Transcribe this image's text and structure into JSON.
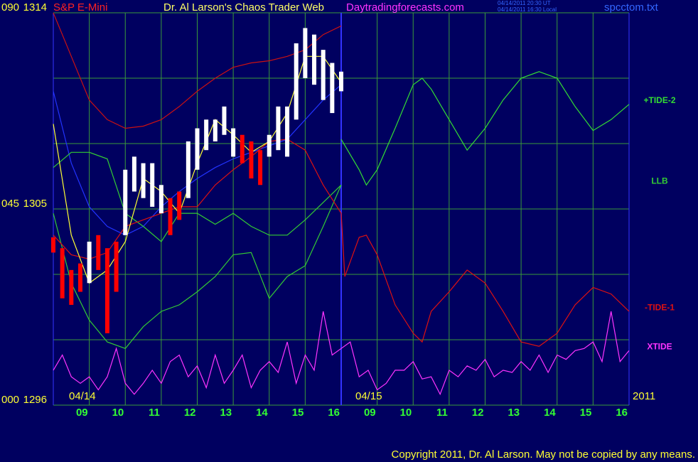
{
  "chart_data": {
    "type": "line",
    "title": "Dr. Al Larson's Chaos Trader Web",
    "symbol": "S&P E-Mini",
    "website": "Daytradingforecasts.com",
    "timestamp_ut": "04/14/2011 20:30 UT",
    "timestamp_local": "04/14/2011 16:30 Local",
    "filename": "spcctom.txt",
    "date_labels": [
      "04/14",
      "04/15",
      "2011"
    ],
    "copyright": "Copyright 2011, Dr. Al Larson. May not be copied by any means.",
    "xlim": [
      0,
      16
    ],
    "xticks": [
      {
        "value": 1,
        "label": "09"
      },
      {
        "value": 2,
        "label": "10"
      },
      {
        "value": 3,
        "label": "11"
      },
      {
        "value": 4,
        "label": "12"
      },
      {
        "value": 5,
        "label": "13"
      },
      {
        "value": 6,
        "label": "14"
      },
      {
        "value": 7,
        "label": "15"
      },
      {
        "value": 8,
        "label": "16"
      },
      {
        "value": 9,
        "label": "09"
      },
      {
        "value": 10,
        "label": "10"
      },
      {
        "value": 11,
        "label": "11"
      },
      {
        "value": 12,
        "label": "12"
      },
      {
        "value": 13,
        "label": "13"
      },
      {
        "value": 14,
        "label": "14"
      },
      {
        "value": 15,
        "label": "15"
      },
      {
        "value": 16,
        "label": "16"
      }
    ],
    "session_break": 8,
    "ylim": [
      1296,
      1314
    ],
    "yticks": [
      1296,
      1305,
      1314
    ],
    "y2lim": [
      0,
      90
    ],
    "y2ticks": [
      {
        "value": 0,
        "label": "000"
      },
      {
        "value": 45,
        "label": "045"
      },
      {
        "value": 90,
        "label": "090"
      }
    ],
    "grid_y": [
      1299,
      1302,
      1308,
      1311
    ],
    "grid": true,
    "grid_color": "#3a9a3a",
    "axis_color": "#3333ff",
    "background": "#000060",
    "series": [
      {
        "color": "#cc1111",
        "x": [
          0,
          0.5,
          1,
          1.5,
          2,
          2.5,
          3,
          3.5,
          4,
          4.5,
          5,
          5.5,
          6,
          6.5,
          7,
          7.5,
          8
        ],
        "values": [
          1314.0,
          1312.0,
          1310.0,
          1309.1,
          1308.7,
          1308.8,
          1309.1,
          1309.7,
          1310.4,
          1311.0,
          1311.5,
          1311.7,
          1311.8,
          1312.0,
          1312.3,
          1313.0,
          1313.4
        ]
      },
      {
        "color": "#2233ff",
        "x": [
          0,
          0.5,
          1,
          1.5,
          2,
          2.5,
          3,
          3.5,
          4,
          4.5,
          5,
          5.5,
          6,
          6.5,
          7,
          7.5,
          8
        ],
        "values": [
          1310.4,
          1307.1,
          1305.1,
          1304.2,
          1303.8,
          1304.2,
          1305.1,
          1305.8,
          1306.4,
          1306.9,
          1307.3,
          1307.6,
          1307.9,
          1308.2,
          1309.1,
          1310.0,
          1310.7
        ]
      },
      {
        "color": "#33cc33",
        "x": [
          0,
          0.5,
          1,
          1.5,
          2,
          2.5,
          3,
          3.5,
          4,
          4.5,
          5,
          5.5,
          6,
          6.5,
          7,
          7.5,
          8
        ],
        "values": [
          1304.8,
          1301.6,
          1299.9,
          1298.9,
          1298.6,
          1299.6,
          1300.3,
          1300.6,
          1301.2,
          1301.9,
          1302.9,
          1303.0,
          1300.9,
          1301.9,
          1302.4,
          1304.2,
          1306.1
        ]
      },
      {
        "name": "LLB",
        "color": "#33cc33",
        "x": [
          0,
          0.5,
          1,
          1.5,
          2,
          2.5,
          3,
          3.5,
          4,
          4.5,
          5,
          5.5,
          6,
          6.5,
          7,
          7.5,
          8
        ],
        "values": [
          1306.9,
          1307.6,
          1307.6,
          1307.3,
          1304.8,
          1304.2,
          1303.5,
          1304.8,
          1304.8,
          1304.3,
          1304.8,
          1304.2,
          1303.8,
          1303.8,
          1304.5,
          1305.3,
          1306.1
        ]
      },
      {
        "name": "+TIDE-2",
        "color": "#33dd33",
        "x": [
          8,
          8.5,
          8.7,
          9,
          9.5,
          10,
          10.25,
          10.5,
          11,
          11.5,
          12,
          12.5,
          13,
          13.5,
          14,
          14.5,
          15,
          15.5,
          16
        ],
        "values": [
          1308.2,
          1306.8,
          1306.1,
          1306.8,
          1308.7,
          1310.7,
          1311.0,
          1310.5,
          1309.1,
          1307.7,
          1308.7,
          1310.0,
          1311.0,
          1311.3,
          1311.0,
          1309.7,
          1308.6,
          1309.1,
          1309.8
        ]
      },
      {
        "name": "-TIDE-1",
        "color": "#dd1111",
        "x": [
          0,
          0.5,
          1,
          1.5,
          2,
          2.5,
          3,
          3.5,
          4,
          4.5,
          5,
          5.5,
          6,
          6.5,
          7,
          7.5,
          8,
          8.1,
          8.5,
          8.7,
          9,
          9.5,
          10,
          10.25,
          10.5,
          11,
          11.5,
          12,
          12.5,
          13,
          13.5,
          14,
          14.5,
          15,
          15.5,
          16
        ],
        "values": [
          1303.8,
          1302.9,
          1302.7,
          1303.0,
          1304.2,
          1304.5,
          1304.8,
          1305.1,
          1305.1,
          1306.1,
          1306.8,
          1307.4,
          1308.1,
          1308.2,
          1307.7,
          1306.1,
          1304.8,
          1301.9,
          1303.7,
          1303.8,
          1302.9,
          1300.6,
          1299.3,
          1298.9,
          1300.3,
          1301.2,
          1302.2,
          1301.6,
          1300.3,
          1298.9,
          1298.7,
          1299.3,
          1300.6,
          1301.4,
          1301.1,
          1300.3
        ]
      },
      {
        "color": "#ffff33",
        "x": [
          0,
          0.5,
          1,
          1.5,
          2,
          2.5,
          3,
          3.5,
          4,
          4.5,
          5,
          5.5,
          6,
          6.5,
          7,
          7.5,
          8
        ],
        "values": [
          1308.9,
          1303.8,
          1301.6,
          1302.2,
          1303.5,
          1306.4,
          1305.8,
          1304.8,
          1307.1,
          1309.1,
          1308.4,
          1307.6,
          1308.1,
          1309.4,
          1312.0,
          1312.0,
          1310.8
        ]
      },
      {
        "name": "XTIDE",
        "color": "#ff33ff",
        "x": [
          0,
          0.25,
          0.5,
          0.75,
          1,
          1.25,
          1.5,
          1.75,
          2,
          2.25,
          2.5,
          2.75,
          3,
          3.25,
          3.5,
          3.75,
          4,
          4.25,
          4.5,
          4.75,
          5,
          5.25,
          5.5,
          5.75,
          6,
          6.25,
          6.5,
          6.75,
          7,
          7.25,
          7.5,
          7.75,
          8,
          8.25,
          8.5,
          8.75,
          9,
          9.25,
          9.5,
          9.75,
          10,
          10.25,
          10.5,
          10.75,
          11,
          11.25,
          11.5,
          11.75,
          12,
          12.25,
          12.5,
          12.75,
          13,
          13.25,
          13.5,
          13.75,
          14,
          14.25,
          14.5,
          14.75,
          15,
          15.25,
          15.5,
          15.75,
          16
        ],
        "values": [
          1297.6,
          1298.3,
          1297.3,
          1297.0,
          1297.3,
          1296.7,
          1297.3,
          1298.6,
          1297.0,
          1296.5,
          1297.0,
          1297.6,
          1297.0,
          1298.0,
          1298.3,
          1297.3,
          1297.8,
          1296.8,
          1298.3,
          1297.0,
          1297.6,
          1298.3,
          1296.8,
          1297.6,
          1298.0,
          1297.5,
          1298.9,
          1297.0,
          1298.3,
          1297.6,
          1300.3,
          1298.3,
          1298.6,
          1298.9,
          1297.3,
          1297.6,
          1296.7,
          1297.0,
          1297.6,
          1297.6,
          1298.0,
          1297.2,
          1297.3,
          1296.5,
          1297.6,
          1297.3,
          1297.8,
          1297.6,
          1298.1,
          1297.3,
          1297.6,
          1297.5,
          1298.0,
          1297.6,
          1298.3,
          1297.5,
          1298.3,
          1298.1,
          1298.5,
          1298.6,
          1298.9,
          1298.0,
          1300.3,
          1298.0,
          1298.5
        ]
      }
    ],
    "price_bars": {
      "x": [
        0,
        0.25,
        0.5,
        0.75,
        1,
        1.25,
        1.5,
        1.75,
        2,
        2.25,
        2.5,
        2.75,
        3,
        3.25,
        3.5,
        3.75,
        4,
        4.25,
        4.5,
        4.75,
        5,
        5.25,
        5.5,
        5.75,
        6,
        6.25,
        6.5,
        6.75,
        7,
        7.25,
        7.5,
        7.75,
        8
      ],
      "high": [
        1303.7,
        1303.2,
        1302.2,
        1302.5,
        1303.5,
        1303.8,
        1303.2,
        1303.5,
        1306.8,
        1307.4,
        1307.1,
        1307.1,
        1306.1,
        1305.5,
        1305.8,
        1308.1,
        1308.7,
        1309.1,
        1309.1,
        1309.7,
        1308.7,
        1308.4,
        1308.1,
        1307.7,
        1308.4,
        1309.7,
        1309.7,
        1312.6,
        1313.3,
        1313.0,
        1312.3,
        1311.7,
        1311.3
      ],
      "low": [
        1303.0,
        1300.9,
        1300.6,
        1301.2,
        1301.6,
        1302.2,
        1299.3,
        1301.2,
        1303.8,
        1305.8,
        1305.5,
        1305.1,
        1304.8,
        1303.8,
        1304.5,
        1305.5,
        1306.8,
        1307.7,
        1308.1,
        1308.4,
        1307.4,
        1307.1,
        1306.4,
        1306.1,
        1307.4,
        1307.7,
        1307.4,
        1309.1,
        1311.0,
        1310.7,
        1310.0,
        1309.4,
        1310.4
      ],
      "colors": [
        "#ff0000",
        "#ff0000",
        "#ff0000",
        "#ff0000",
        "#ffffff",
        "#ff0000",
        "#ff0000",
        "#ff0000",
        "#ffffff",
        "#ffffff",
        "#ffffff",
        "#ffffff",
        "#ffffff",
        "#ff0000",
        "#ff0000",
        "#ffffff",
        "#ffffff",
        "#ffffff",
        "#ffffff",
        "#ffffff",
        "#ffffff",
        "#ff0000",
        "#ff0000",
        "#ff0000",
        "#ffffff",
        "#ffffff",
        "#ffffff",
        "#ffffff",
        "#ffffff",
        "#ffffff",
        "#ffffff",
        "#ffffff",
        "#ffffff"
      ]
    }
  }
}
